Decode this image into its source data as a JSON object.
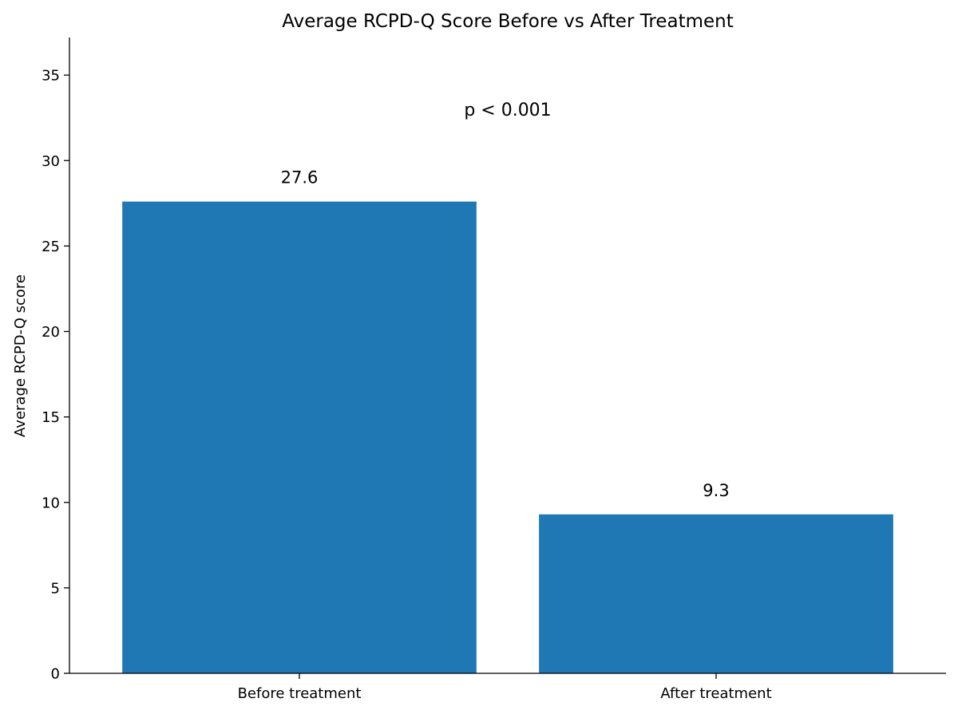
{
  "chart_data": {
    "type": "bar",
    "title": "Average RCPD-Q Score Before vs After Treatment",
    "xlabel": "",
    "ylabel": "Average RCPD-Q score",
    "categories": [
      "Before treatment",
      "After treatment"
    ],
    "values": [
      27.6,
      9.3
    ],
    "value_labels": [
      "27.6",
      "9.3"
    ],
    "ylim": [
      0,
      37.2
    ],
    "yticks": [
      0,
      5,
      10,
      15,
      20,
      25,
      30,
      35
    ],
    "annotation": {
      "text": "p < 0.001",
      "y": 33.0
    },
    "bar_color": "#1f77b4",
    "grid": false,
    "legend": "none"
  }
}
